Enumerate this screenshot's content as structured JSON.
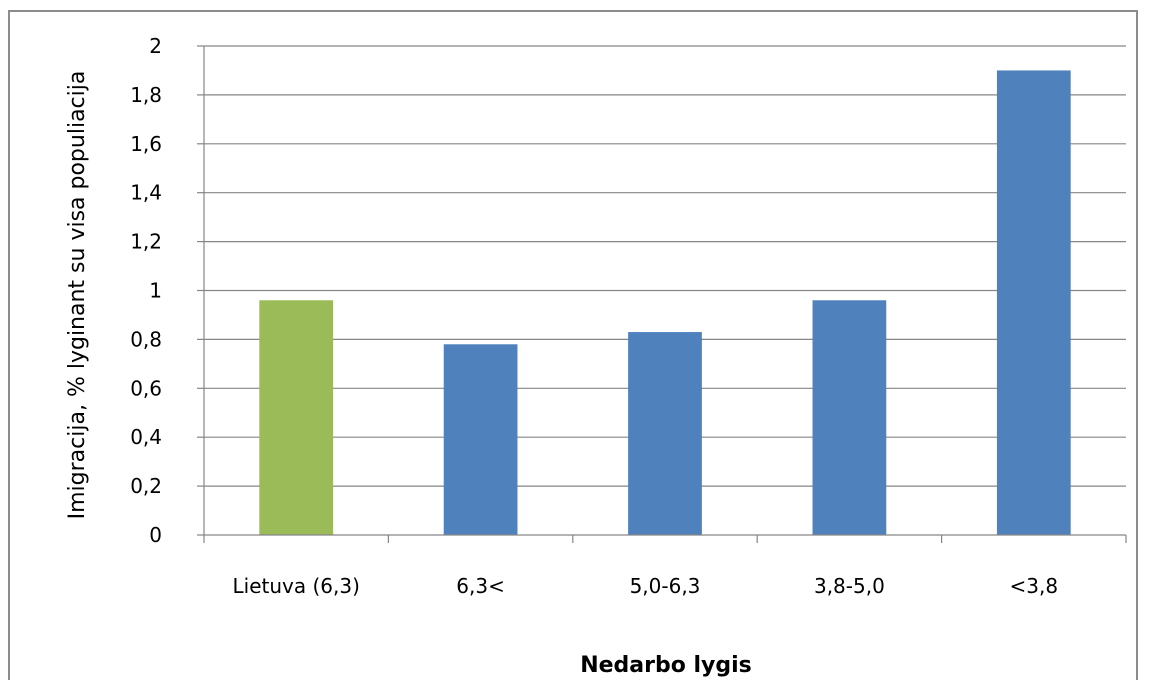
{
  "chart_data": {
    "type": "bar",
    "categories": [
      "Lietuva (6,3)",
      "6,3<",
      "5,0-6,3",
      "3,8-5,0",
      "<3,8"
    ],
    "values": [
      0.96,
      0.78,
      0.83,
      0.96,
      1.9
    ],
    "bar_colors": [
      "#9bbb59",
      "#4f81bd",
      "#4f81bd",
      "#4f81bd",
      "#4f81bd"
    ],
    "xlabel": "Nedarbo lygis",
    "ylabel": "Imigracija, % lyginant su visa populiacija",
    "ylim": [
      0,
      2
    ],
    "yticks": [
      0,
      0.2,
      0.4,
      0.6,
      0.8,
      1,
      1.2,
      1.4,
      1.6,
      1.8,
      2
    ],
    "ytick_labels": [
      "0",
      "0,2",
      "0,4",
      "0,6",
      "0,8",
      "1",
      "1,2",
      "1,4",
      "1,6",
      "1,8",
      "2"
    ],
    "grid": true,
    "legend": false,
    "gridline_color": "#868686"
  }
}
